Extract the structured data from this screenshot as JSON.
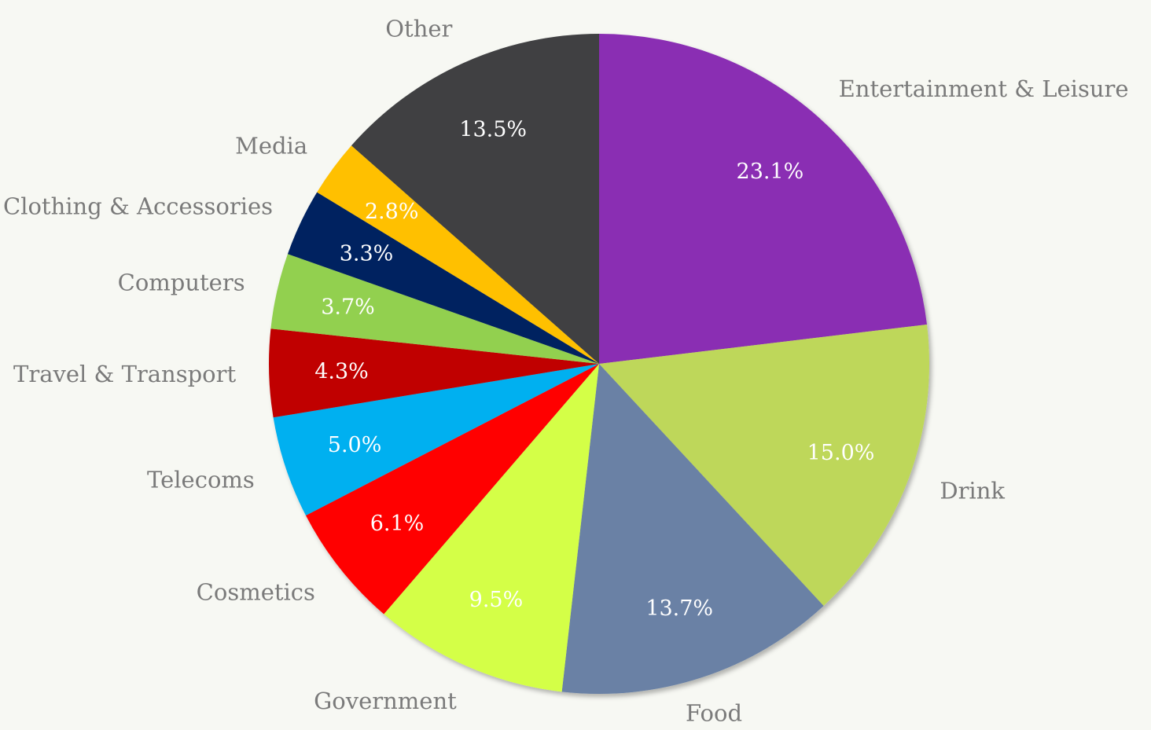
{
  "chart_data": {
    "type": "pie",
    "title": "",
    "start_angle_deg": 0,
    "direction": "clockwise",
    "slices": [
      {
        "label": "Entertainment & Leisure",
        "value": 23.1,
        "display": "23.1%",
        "color": "#8a2db3"
      },
      {
        "label": "Drink",
        "value": 15.0,
        "display": "15.0%",
        "color": "#bed75a"
      },
      {
        "label": "Food",
        "value": 13.7,
        "display": "13.7%",
        "color": "#6a81a5"
      },
      {
        "label": "Government",
        "value": 9.5,
        "display": "9.5%",
        "color": "#d4ff46"
      },
      {
        "label": "Cosmetics",
        "value": 6.1,
        "display": "6.1%",
        "color": "#ff0000"
      },
      {
        "label": "Telecoms",
        "value": 5.0,
        "display": "5.0%",
        "color": "#00b0f0"
      },
      {
        "label": "Travel & Transport",
        "value": 4.3,
        "display": "4.3%",
        "color": "#c00000"
      },
      {
        "label": "Computers",
        "value": 3.7,
        "display": "3.7%",
        "color": "#92d050"
      },
      {
        "label": "Clothing & Accessories",
        "value": 3.3,
        "display": "3.3%",
        "color": "#002060"
      },
      {
        "label": "Media",
        "value": 2.8,
        "display": "2.8%",
        "color": "#ffc000"
      },
      {
        "label": "Other",
        "value": 13.5,
        "display": "13.5%",
        "color": "#3f4043"
      }
    ]
  }
}
